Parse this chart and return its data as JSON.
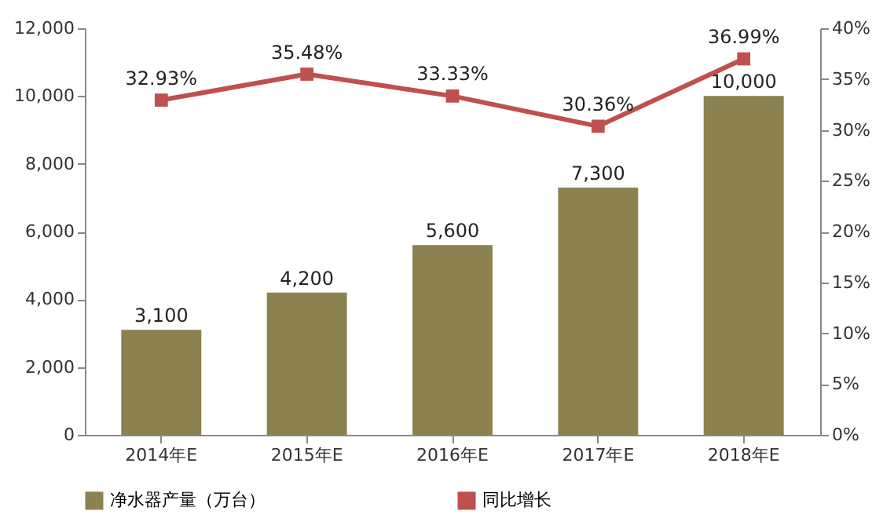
{
  "chart_data": {
    "type": "bar",
    "categories": [
      "2014年E",
      "2015年E",
      "2016年E",
      "2017年E",
      "2018年E"
    ],
    "series": [
      {
        "name": "净水器产量（万台）",
        "color": "#8c8250",
        "values": [
          3100,
          4200,
          5600,
          7300,
          10000
        ],
        "value_labels": [
          "3,100",
          "4,200",
          "5,600",
          "7,300",
          "10,000"
        ]
      },
      {
        "name": "同比增长",
        "type": "line",
        "axis": "y2",
        "color": "#c0504d",
        "values": [
          32.93,
          35.48,
          33.33,
          30.36,
          36.99
        ],
        "value_labels": [
          "32.93%",
          "35.48%",
          "33.33%",
          "30.36%",
          "36.99%"
        ]
      }
    ],
    "ylim": [
      0,
      12000
    ],
    "yticks": [
      {
        "value": 0,
        "label": "0"
      },
      {
        "value": 2000,
        "label": "2,000"
      },
      {
        "value": 4000,
        "label": "4,000"
      },
      {
        "value": 6000,
        "label": "6,000"
      },
      {
        "value": 8000,
        "label": "8,000"
      },
      {
        "value": 10000,
        "label": "10,000"
      },
      {
        "value": 12000,
        "label": "12,000"
      }
    ],
    "y2lim": [
      0,
      40
    ],
    "y2ticks": [
      {
        "value": 0,
        "label": "0%"
      },
      {
        "value": 5,
        "label": "5%"
      },
      {
        "value": 10,
        "label": "10%"
      },
      {
        "value": 15,
        "label": "15%"
      },
      {
        "value": 20,
        "label": "20%"
      },
      {
        "value": 25,
        "label": "25%"
      },
      {
        "value": 30,
        "label": "30%"
      },
      {
        "value": 35,
        "label": "35%"
      },
      {
        "value": 40,
        "label": "40%"
      }
    ],
    "legend": "bottom",
    "marker": "square",
    "line_style": "solid",
    "grid": false
  }
}
